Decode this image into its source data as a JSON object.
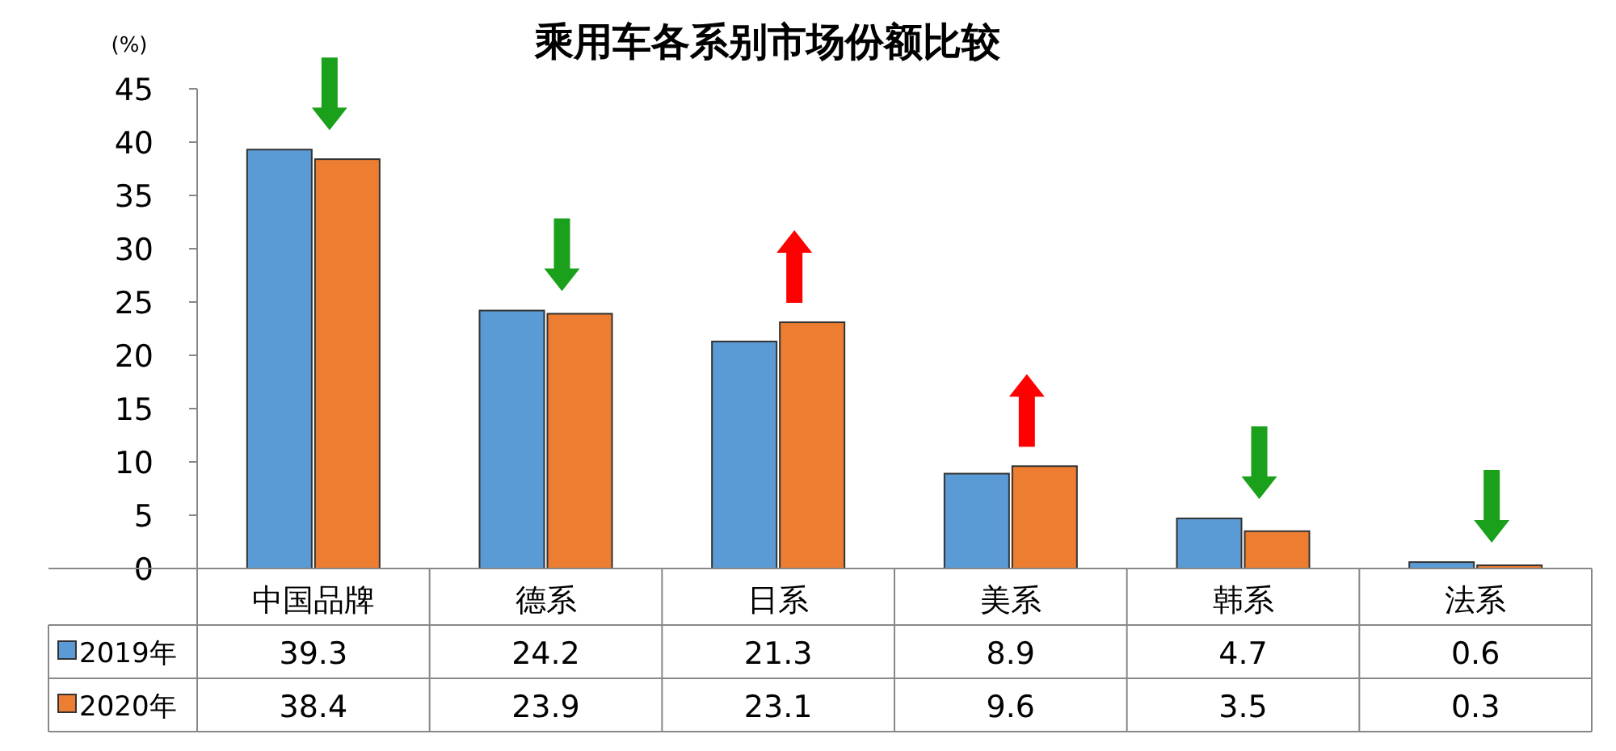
{
  "chart_data": {
    "type": "bar",
    "title": "乘用车各系别市场份额比较",
    "ylabel": "(%)",
    "categories": [
      "中国品牌",
      "德系",
      "日系",
      "美系",
      "韩系",
      "法系"
    ],
    "series": [
      {
        "name": "2019年",
        "color": "#5b9bd5",
        "values": [
          39.3,
          24.2,
          21.3,
          8.9,
          4.7,
          0.6
        ]
      },
      {
        "name": "2020年",
        "color": "#ed7d31",
        "values": [
          38.4,
          23.9,
          23.1,
          9.6,
          3.5,
          0.3
        ]
      }
    ],
    "ylim": [
      0,
      45
    ],
    "yticks": [
      0,
      5,
      10,
      15,
      20,
      25,
      30,
      35,
      40,
      45
    ],
    "data_labels": true,
    "legend": "bottom left",
    "grid": false
  }
}
